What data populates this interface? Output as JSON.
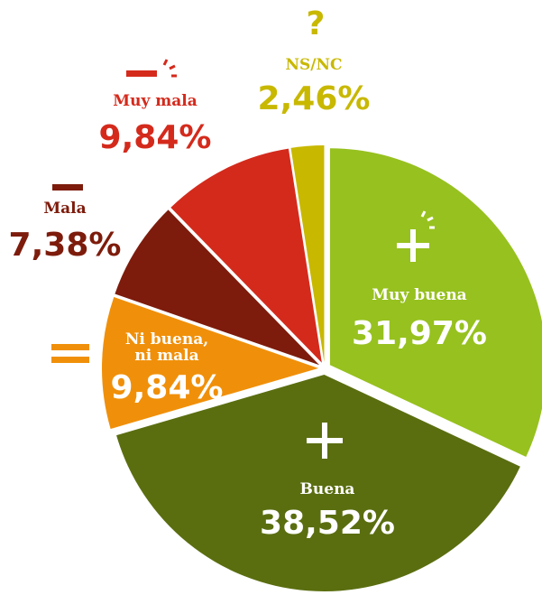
{
  "chart_data": {
    "type": "pie",
    "categories": [
      "Muy buena",
      "Buena",
      "Ni buena, ni mala",
      "Mala",
      "Muy mala",
      "NS/NC"
    ],
    "values": [
      31.97,
      38.52,
      9.84,
      7.38,
      9.84,
      2.46
    ],
    "value_labels": [
      "31,97%",
      "38,52%",
      "9,84%",
      "7,38%",
      "9,84%",
      "2,46%"
    ],
    "colors": [
      "#97c11f",
      "#5a6e10",
      "#f0900a",
      "#7d1c0c",
      "#d42a1c",
      "#c8b800"
    ]
  }
}
